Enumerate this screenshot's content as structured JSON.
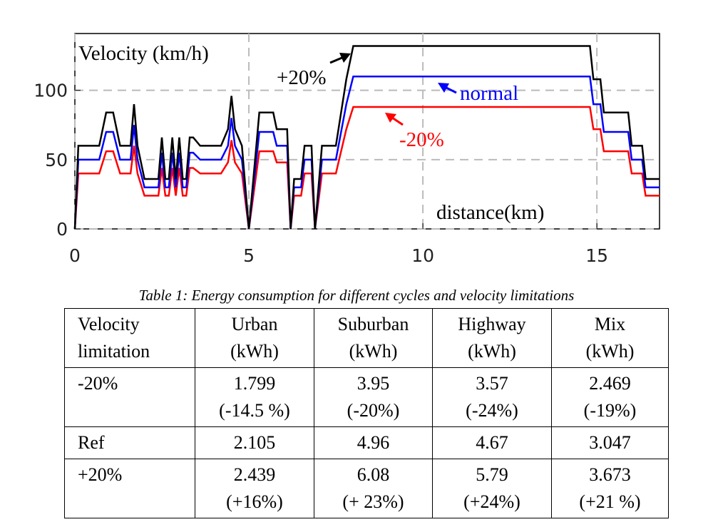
{
  "chart_data": {
    "type": "line",
    "y_label": "Velocity (km/h)",
    "x_label": "distance(km)",
    "annotations": [
      "+20%",
      "normal",
      "-20%"
    ],
    "x": [
      0,
      0.1,
      0.7,
      0.9,
      1.1,
      1.3,
      1.6,
      1.7,
      1.8,
      2.0,
      2.4,
      2.5,
      2.6,
      2.7,
      2.8,
      2.9,
      3.0,
      3.1,
      3.2,
      3.3,
      3.4,
      3.6,
      4.2,
      4.4,
      4.5,
      4.6,
      4.8,
      5.0,
      5.3,
      5.7,
      5.8,
      6.1,
      6.2,
      6.3,
      6.5,
      6.6,
      6.8,
      6.9,
      7.1,
      7.2,
      7.5,
      7.8,
      8.0,
      14.5,
      14.8,
      14.9,
      15.1,
      15.2,
      15.9,
      16.0,
      16.3,
      16.4,
      16.8
    ],
    "series": [
      {
        "name": "+20%",
        "color": "#000000",
        "values": [
          0,
          60,
          60,
          84,
          84,
          60,
          60,
          90,
          60,
          36,
          36,
          66,
          36,
          36,
          66,
          36,
          66,
          36,
          36,
          66,
          66,
          60,
          60,
          72,
          96,
          72,
          60,
          0,
          84,
          84,
          72,
          72,
          0,
          36,
          36,
          60,
          60,
          0,
          60,
          60,
          60,
          108,
          132,
          132,
          132,
          108,
          108,
          84,
          84,
          60,
          60,
          36,
          36
        ]
      },
      {
        "name": "normal",
        "color": "#0000ff",
        "values": [
          0,
          50,
          50,
          70,
          70,
          50,
          50,
          75,
          50,
          30,
          30,
          55,
          30,
          30,
          55,
          30,
          55,
          30,
          30,
          55,
          55,
          50,
          50,
          60,
          80,
          60,
          50,
          0,
          70,
          70,
          60,
          60,
          0,
          30,
          30,
          50,
          50,
          0,
          50,
          50,
          50,
          90,
          110,
          110,
          110,
          90,
          90,
          70,
          70,
          50,
          50,
          30,
          30
        ]
      },
      {
        "name": "-20%",
        "color": "#ff0000",
        "values": [
          0,
          40,
          40,
          56,
          56,
          40,
          40,
          60,
          40,
          24,
          24,
          44,
          24,
          24,
          44,
          24,
          44,
          24,
          24,
          44,
          44,
          40,
          40,
          48,
          64,
          48,
          40,
          0,
          56,
          56,
          48,
          48,
          0,
          24,
          24,
          40,
          40,
          0,
          40,
          40,
          40,
          72,
          88,
          88,
          88,
          72,
          72,
          56,
          56,
          40,
          40,
          24,
          24
        ]
      }
    ],
    "xlim": [
      0,
      16.8
    ],
    "xticks": [
      0,
      5,
      10,
      15
    ],
    "ylim": [
      0,
      141
    ],
    "yticks": [
      0,
      50,
      100
    ],
    "grid": true
  },
  "table": {
    "caption": "Table 1: Energy consumption for different cycles and velocity limitations",
    "header": [
      "Velocity\nlimitation",
      "Urban\n(kWh)",
      "Suburban\n(kWh)",
      "Highway\n(kWh)",
      "Mix\n(kWh)"
    ],
    "rows": [
      [
        "-20%",
        "1.799\n(-14.5 %)",
        "3.95\n(-20%)",
        "3.57\n(-24%)",
        "2.469\n(-19%)"
      ],
      [
        "Ref",
        "2.105",
        "4.96",
        "4.67",
        "3.047"
      ],
      [
        "+20%",
        "2.439\n(+16%)",
        "6.08\n(+ 23%)",
        "5.79\n(+24%)",
        "3.673\n(+21 %)"
      ]
    ]
  }
}
